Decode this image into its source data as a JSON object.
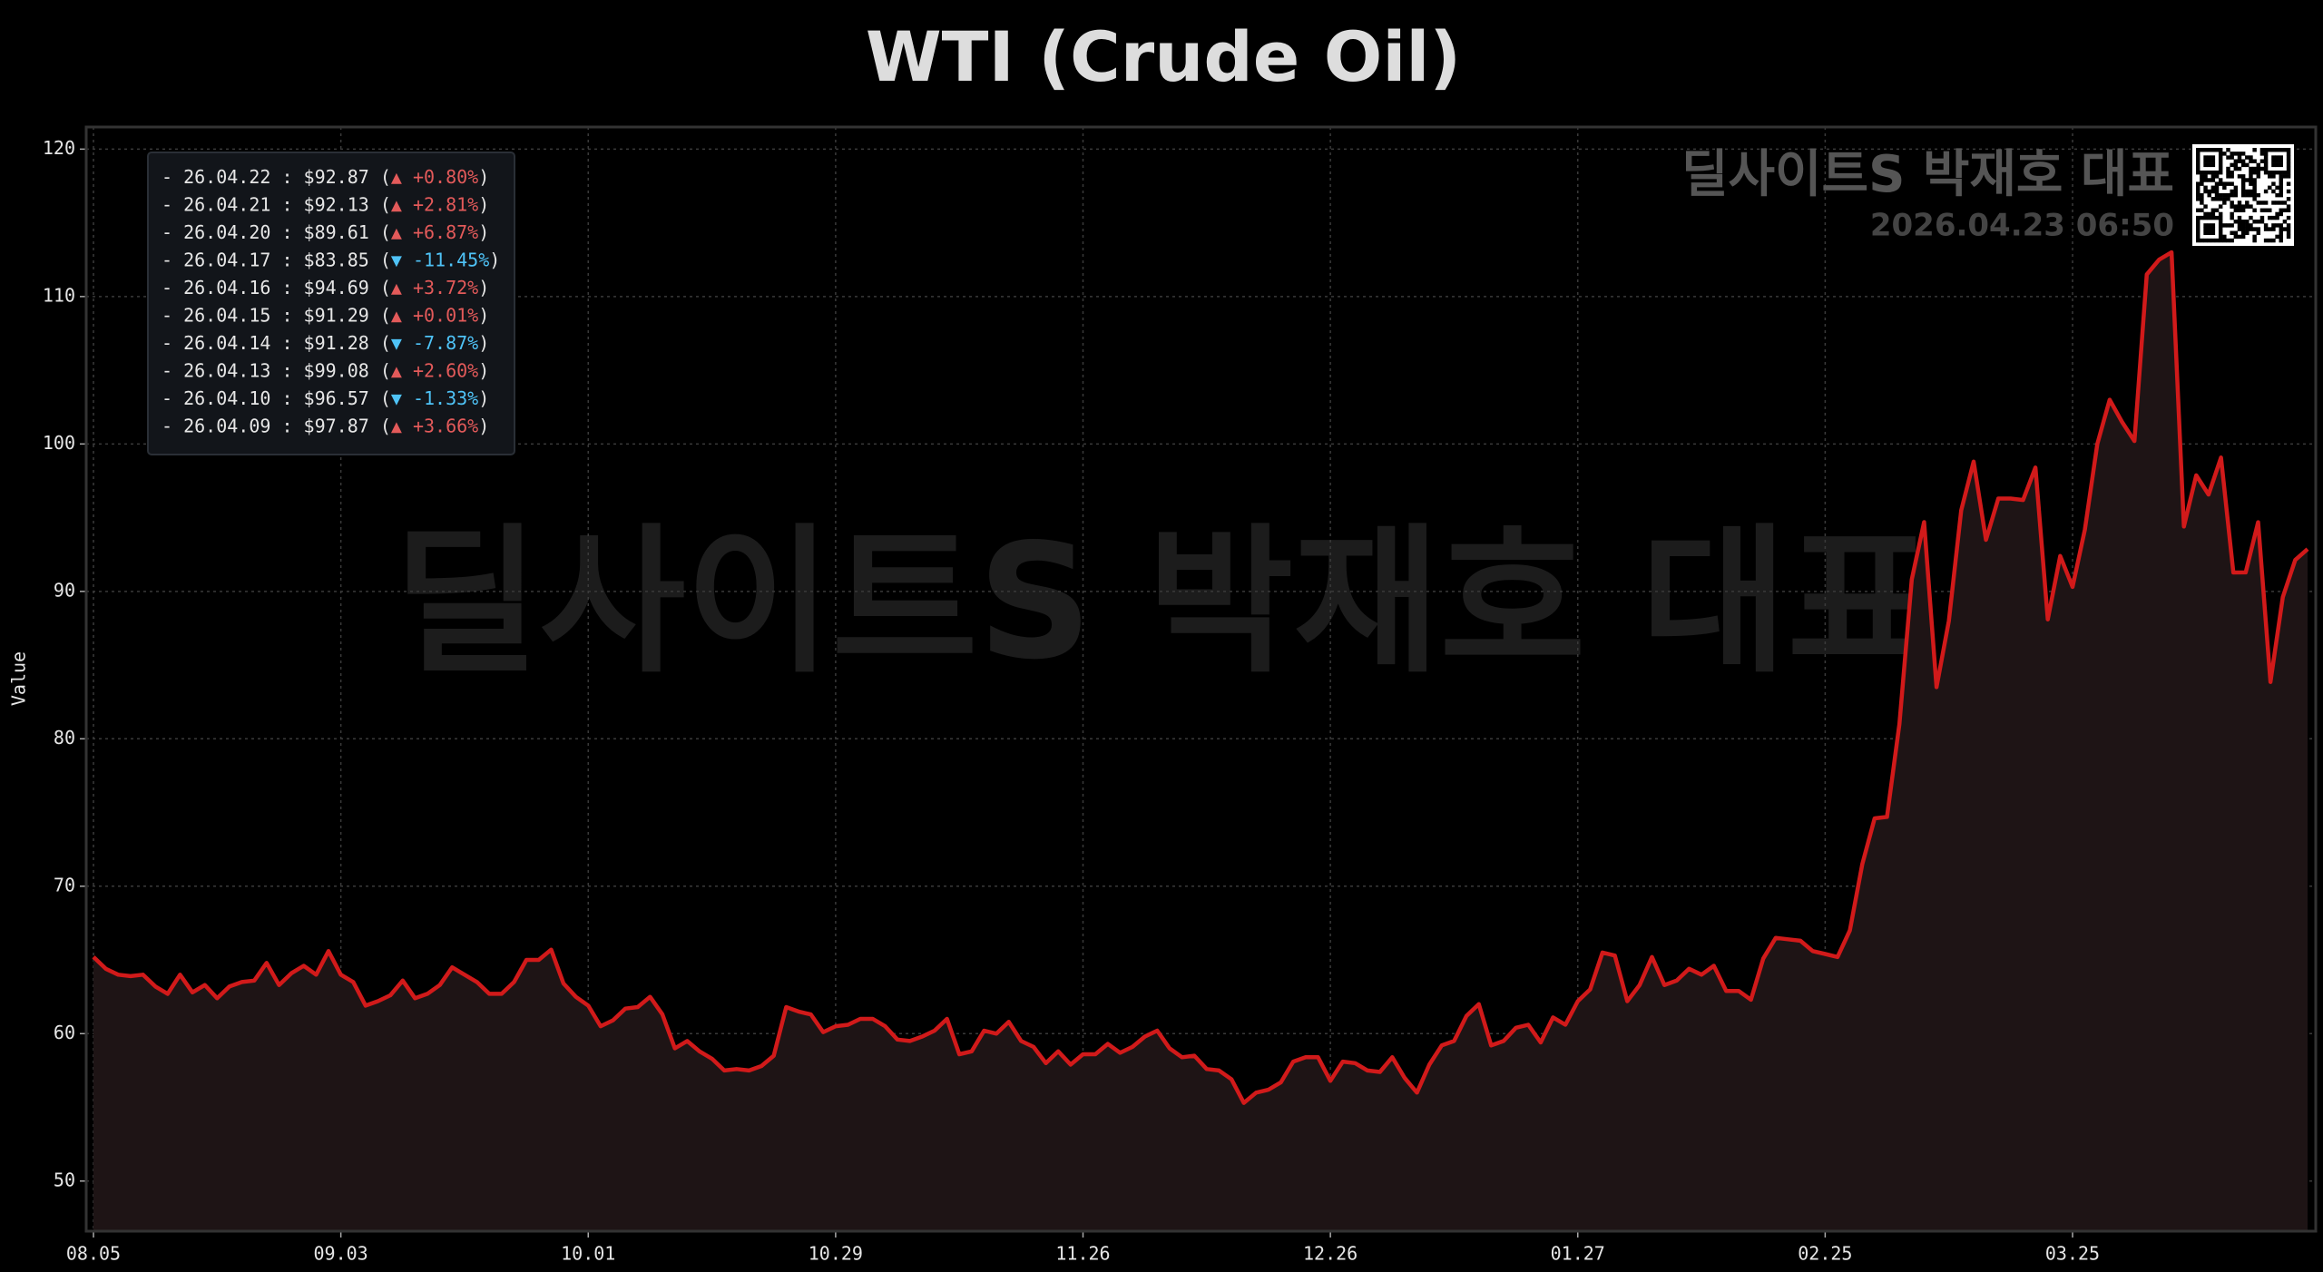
{
  "chart_data": {
    "type": "line",
    "title": "WTI (Crude Oil)",
    "y_label": "Value",
    "color": "#d11a1a",
    "fill_color": "#1e1415",
    "categories": [
      "08.05",
      null,
      null,
      null,
      null,
      null,
      null,
      null,
      null,
      null,
      null,
      null,
      null,
      null,
      null,
      null,
      null,
      null,
      null,
      null,
      "09.03",
      null,
      null,
      null,
      null,
      null,
      null,
      null,
      null,
      null,
      null,
      null,
      null,
      null,
      null,
      null,
      null,
      null,
      null,
      null,
      "10.01",
      null,
      null,
      null,
      null,
      null,
      null,
      null,
      null,
      null,
      null,
      null,
      null,
      null,
      null,
      null,
      null,
      null,
      null,
      null,
      "10.29",
      null,
      null,
      null,
      null,
      null,
      null,
      null,
      null,
      null,
      null,
      null,
      null,
      null,
      null,
      null,
      null,
      null,
      null,
      null,
      "11.26",
      null,
      null,
      null,
      null,
      null,
      null,
      null,
      null,
      null,
      null,
      null,
      null,
      null,
      null,
      null,
      null,
      null,
      null,
      null,
      "12.26",
      null,
      null,
      null,
      null,
      null,
      null,
      null,
      null,
      null,
      null,
      null,
      null,
      null,
      null,
      null,
      null,
      null,
      null,
      null,
      "01.27",
      null,
      null,
      null,
      null,
      null,
      null,
      null,
      null,
      null,
      null,
      null,
      null,
      null,
      null,
      null,
      null,
      null,
      null,
      null,
      "02.25",
      null,
      null,
      null,
      null,
      null,
      null,
      null,
      null,
      null,
      null,
      null,
      null,
      null,
      null,
      null,
      null,
      null,
      null,
      null,
      "03.25",
      null,
      null,
      null,
      null,
      null,
      null,
      null,
      null,
      null,
      null,
      null,
      null,
      null,
      null,
      null,
      null,
      null,
      null,
      null
    ],
    "values": [
      65.2,
      64.4,
      64.0,
      63.9,
      64.0,
      63.2,
      62.7,
      64.0,
      62.8,
      63.3,
      62.4,
      63.2,
      63.5,
      63.6,
      64.8,
      63.3,
      64.1,
      64.6,
      64.0,
      65.6,
      64.0,
      63.5,
      61.9,
      62.2,
      62.6,
      63.6,
      62.4,
      62.7,
      63.3,
      64.5,
      64.0,
      63.5,
      62.7,
      62.7,
      63.5,
      65.0,
      65.0,
      65.7,
      63.4,
      62.5,
      61.9,
      60.5,
      60.9,
      61.7,
      61.8,
      62.5,
      61.3,
      59.0,
      59.5,
      58.8,
      58.3,
      57.5,
      57.6,
      57.5,
      57.8,
      58.5,
      61.8,
      61.5,
      61.3,
      60.1,
      60.5,
      60.6,
      61.0,
      61.0,
      60.5,
      59.6,
      59.5,
      59.8,
      60.2,
      61.0,
      58.6,
      58.8,
      60.2,
      60.0,
      60.8,
      59.5,
      59.1,
      58.0,
      58.8,
      57.9,
      58.6,
      58.6,
      59.3,
      58.7,
      59.1,
      59.8,
      60.2,
      59.0,
      58.4,
      58.5,
      57.6,
      57.5,
      56.9,
      55.3,
      56.0,
      56.2,
      56.7,
      58.1,
      58.4,
      58.4,
      56.8,
      58.1,
      58.0,
      57.5,
      57.4,
      58.4,
      57.0,
      56.0,
      57.9,
      59.2,
      59.5,
      61.2,
      62.0,
      59.2,
      59.5,
      60.4,
      60.6,
      59.4,
      61.1,
      60.6,
      62.2,
      63.0,
      65.5,
      65.3,
      62.2,
      63.3,
      65.2,
      63.3,
      63.6,
      64.4,
      64.0,
      64.6,
      62.9,
      62.9,
      62.3,
      65.1,
      66.5,
      66.4,
      66.3,
      65.6,
      65.4,
      65.2,
      67.0,
      71.5,
      74.6,
      74.7,
      81.0,
      90.8,
      94.7,
      83.5,
      88.0,
      95.5,
      98.8,
      93.5,
      96.3,
      96.3,
      96.2,
      98.4,
      88.1,
      92.4,
      90.3,
      94.2,
      100.0,
      103.0,
      101.5,
      100.2,
      111.5,
      112.5,
      113.0,
      94.4,
      97.87,
      96.57,
      99.08,
      91.28,
      91.29,
      94.69,
      83.85,
      89.61,
      92.13,
      92.87
    ],
    "ylim": [
      46.6,
      121.5
    ],
    "yticks": [
      50,
      60,
      70,
      80,
      90,
      100,
      110,
      120
    ],
    "grid": true,
    "info_box": [
      {
        "prefix": "- 26.04.22 : $92.87 (",
        "change": "▲ +0.80%",
        "suffix": ")",
        "color": "#e35a5a"
      },
      {
        "prefix": "- 26.04.21 : $92.13 (",
        "change": "▲ +2.81%",
        "suffix": ")",
        "color": "#e35a5a"
      },
      {
        "prefix": "- 26.04.20 : $89.61 (",
        "change": "▲ +6.87%",
        "suffix": ")",
        "color": "#e35a5a"
      },
      {
        "prefix": "- 26.04.17 : $83.85 (",
        "change": "▼ -11.45%",
        "suffix": ")",
        "color": "#4fc3f7"
      },
      {
        "prefix": "- 26.04.16 : $94.69 (",
        "change": "▲ +3.72%",
        "suffix": ")",
        "color": "#e35a5a"
      },
      {
        "prefix": "- 26.04.15 : $91.29 (",
        "change": "▲ +0.01%",
        "suffix": ")",
        "color": "#e35a5a"
      },
      {
        "prefix": "- 26.04.14 : $91.28 (",
        "change": "▼ -7.87%",
        "suffix": ")",
        "color": "#4fc3f7"
      },
      {
        "prefix": "- 26.04.13 : $99.08 (",
        "change": "▲ +2.60%",
        "suffix": ")",
        "color": "#e35a5a"
      },
      {
        "prefix": "- 26.04.10 : $96.57 (",
        "change": "▼ -1.33%",
        "suffix": ")",
        "color": "#4fc3f7"
      },
      {
        "prefix": "- 26.04.09 : $97.87 (",
        "change": "▲ +3.66%",
        "suffix": ")",
        "color": "#e35a5a"
      }
    ],
    "watermark": "딜사이트S 박재호 대표",
    "timestamp": "2026.04.23 06:50"
  }
}
